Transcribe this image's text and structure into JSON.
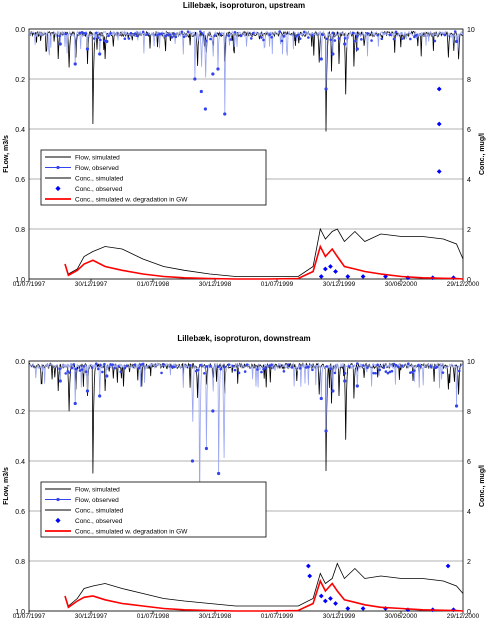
{
  "chart_data": [
    {
      "type": "line",
      "title": "Lillebæk, isoproturon, upstream",
      "ylabel_left": "FLow, m3/s",
      "ylabel_right": "Conc., mug/l",
      "xlabel": "",
      "x_ticks": [
        "01/07/1997",
        "30/12/1997",
        "01/07/1998",
        "30/12/1998",
        "01/07/1999",
        "30/12/1999",
        "30/06/2000",
        "29/12/2000"
      ],
      "x_range": [
        "1997-07-01",
        "2000-12-29"
      ],
      "ylim_left": [
        1.0,
        0.0
      ],
      "yticks_left": [
        "0.0",
        "0.2",
        "0.4",
        "0.6",
        "0.8",
        "1.0"
      ],
      "ylim_right": [
        0,
        10
      ],
      "yticks_right": [
        "0",
        "2",
        "4",
        "6",
        "8",
        "10"
      ],
      "grid": "horizontal",
      "legend": [
        {
          "label": "Flow, simulated",
          "style": "line",
          "color": "#000000"
        },
        {
          "label": "Flow, observed",
          "style": "line-marker",
          "color": "#3344ee"
        },
        {
          "label": "Conc., simulated",
          "style": "line",
          "color": "#000000"
        },
        {
          "label": "Conc., observed",
          "style": "marker",
          "color": "#0000ff"
        },
        {
          "label": "Conc., simulated w. degradation in GW",
          "style": "line",
          "color": "#ff0000"
        }
      ],
      "series": [
        {
          "name": "Flow, simulated",
          "axis": "left",
          "color": "#000000",
          "x": [
            "1997-07-01",
            "1997-09-25",
            "1997-10-26",
            "1997-11-15",
            "1997-12-20",
            "1998-01-05",
            "1998-02-10",
            "1998-03-06",
            "1998-11-08",
            "1998-12-04",
            "1998-12-24",
            "1999-01-28",
            "1999-02-18",
            "1999-11-01",
            "1999-11-22",
            "1999-12-08",
            "1999-12-30",
            "2000-01-18",
            "2000-02-12",
            "2000-03-12",
            "2000-11-15",
            "2000-12-01",
            "2000-12-15",
            "2000-12-29"
          ],
          "y": [
            0.0,
            0.12,
            0.23,
            0.17,
            0.14,
            0.38,
            0.12,
            0.07,
            0.22,
            0.14,
            0.1,
            0.13,
            0.07,
            0.2,
            0.41,
            0.17,
            0.14,
            0.39,
            0.15,
            0.1,
            0.17,
            0.07,
            0.18,
            0.06
          ]
        },
        {
          "name": "Flow, observed",
          "axis": "left",
          "color": "#3344ee",
          "x": [
            "1997-10-01",
            "1997-11-14",
            "1997-12-20",
            "1998-01-25",
            "1998-02-15",
            "1998-11-01",
            "1998-11-20",
            "1998-12-02",
            "1998-12-24",
            "1999-01-08",
            "1999-01-28",
            "1999-11-08",
            "1999-11-22",
            "1999-12-12",
            "2000-01-16",
            "2000-02-22",
            "2000-12-10"
          ],
          "y": [
            0.06,
            0.14,
            0.08,
            0.1,
            0.05,
            0.2,
            0.25,
            0.32,
            0.18,
            0.16,
            0.34,
            0.12,
            0.24,
            0.1,
            0.06,
            0.08,
            0.05
          ]
        },
        {
          "name": "Conc., simulated",
          "axis": "right",
          "color": "#000000",
          "x": [
            "1997-10-15",
            "1997-10-25",
            "1997-11-20",
            "1997-12-10",
            "1998-01-05",
            "1998-02-10",
            "1998-04-01",
            "1998-06-01",
            "1998-08-01",
            "1998-10-01",
            "1998-12-15",
            "1999-03-01",
            "1999-06-01",
            "1999-09-01",
            "1999-10-15",
            "1999-11-05",
            "1999-11-20",
            "1999-12-10",
            "1999-12-25",
            "2000-01-15",
            "2000-02-15",
            "2000-03-15",
            "2000-05-01",
            "2000-07-01",
            "2000-09-01",
            "2000-11-01",
            "2000-12-10",
            "2000-12-29"
          ],
          "y": [
            0.6,
            0.2,
            0.4,
            0.9,
            1.1,
            1.3,
            1.2,
            0.8,
            0.5,
            0.35,
            0.2,
            0.1,
            0.1,
            0.1,
            0.5,
            2.0,
            1.6,
            1.9,
            2.0,
            1.5,
            1.9,
            1.5,
            1.8,
            1.7,
            1.7,
            1.6,
            1.4,
            0.8
          ]
        },
        {
          "name": "Conc., observed",
          "axis": "right",
          "color": "#0000ff",
          "x": [
            "1999-11-08",
            "1999-11-20",
            "1999-12-05",
            "1999-12-20",
            "2000-01-25",
            "2000-03-10",
            "2000-05-15",
            "2000-07-20",
            "2000-10-01",
            "2000-10-20",
            "2000-10-20",
            "2000-10-20",
            "2000-12-01"
          ],
          "y": [
            0.1,
            0.4,
            0.5,
            0.3,
            0.1,
            0.1,
            0.1,
            0.05,
            0.05,
            7.6,
            6.2,
            4.3,
            0.05
          ]
        },
        {
          "name": "Conc., simulated w. degradation in GW",
          "axis": "right",
          "color": "#ff0000",
          "x": [
            "1997-10-15",
            "1997-10-25",
            "1997-11-20",
            "1997-12-10",
            "1998-01-05",
            "1998-02-10",
            "1998-04-01",
            "1998-06-01",
            "1998-08-01",
            "1998-10-01",
            "1998-12-15",
            "1999-03-01",
            "1999-06-01",
            "1999-09-01",
            "1999-10-15",
            "1999-11-05",
            "1999-11-20",
            "1999-12-10",
            "1999-12-25",
            "2000-01-15",
            "2000-02-15",
            "2000-03-15",
            "2000-05-01",
            "2000-07-01",
            "2000-09-01",
            "2000-11-01",
            "2000-12-10",
            "2000-12-29"
          ],
          "y": [
            0.6,
            0.15,
            0.35,
            0.6,
            0.75,
            0.5,
            0.35,
            0.2,
            0.1,
            0.05,
            0.02,
            0.0,
            0.0,
            0.02,
            0.3,
            1.3,
            0.9,
            1.2,
            0.9,
            0.5,
            0.4,
            0.3,
            0.2,
            0.1,
            0.05,
            0.03,
            0.02,
            0.0
          ]
        }
      ]
    },
    {
      "type": "line",
      "title": "Lillebæk, isoproturon, downstream",
      "ylabel_left": "FLow, m3/s",
      "ylabel_right": "Conc., mug/l",
      "xlabel": "",
      "x_ticks": [
        "01/07/1997",
        "30/12/1997",
        "01/07/1998",
        "30/12/1998",
        "01/07/1999",
        "30/12/1999",
        "30/06/2000",
        "29/12/2000"
      ],
      "x_range": [
        "1997-07-01",
        "2000-12-29"
      ],
      "ylim_left": [
        1.0,
        0.0
      ],
      "yticks_left": [
        "0.0",
        "0.2",
        "0.4",
        "0.6",
        "0.8",
        "1.0"
      ],
      "ylim_right": [
        0,
        10
      ],
      "yticks_right": [
        "0",
        "2",
        "4",
        "6",
        "8",
        "10"
      ],
      "grid": "horizontal",
      "legend": [
        {
          "label": "Flow, simulated",
          "style": "line",
          "color": "#000000"
        },
        {
          "label": "Flow, observed",
          "style": "line-marker",
          "color": "#3344ee"
        },
        {
          "label": "Conc., simulated",
          "style": "line",
          "color": "#000000"
        },
        {
          "label": "Conc., observed",
          "style": "marker",
          "color": "#0000ff"
        },
        {
          "label": "Conc., simulated w. degradation in GW",
          "style": "line",
          "color": "#ff0000"
        }
      ],
      "series": [
        {
          "name": "Flow, simulated",
          "axis": "left",
          "color": "#000000",
          "x": [
            "1997-07-01",
            "1997-09-25",
            "1997-10-26",
            "1997-11-15",
            "1997-12-20",
            "1998-01-05",
            "1998-02-10",
            "1998-03-06",
            "1998-11-08",
            "1998-12-04",
            "1998-12-24",
            "1999-01-28",
            "1999-02-18",
            "1999-11-01",
            "1999-11-22",
            "1999-12-08",
            "1999-12-30",
            "2000-01-18",
            "2000-02-12",
            "2000-03-12",
            "2000-11-15",
            "2000-12-01",
            "2000-12-15",
            "2000-12-29"
          ],
          "y": [
            0.0,
            0.12,
            0.3,
            0.17,
            0.14,
            0.45,
            0.12,
            0.07,
            0.22,
            0.14,
            0.1,
            0.13,
            0.07,
            0.2,
            0.44,
            0.17,
            0.14,
            0.47,
            0.15,
            0.1,
            0.17,
            0.07,
            0.2,
            0.06
          ]
        },
        {
          "name": "Flow, observed",
          "axis": "left",
          "color": "#3344ee",
          "x": [
            "1997-10-01",
            "1997-11-14",
            "1997-12-20",
            "1998-01-25",
            "1998-02-15",
            "1998-10-25",
            "1998-11-15",
            "1998-12-05",
            "1998-12-24",
            "1999-01-10",
            "1999-01-25",
            "1999-11-08",
            "1999-11-22",
            "1999-12-12",
            "2000-01-16",
            "2000-02-22",
            "2000-12-10"
          ],
          "y": [
            0.08,
            0.17,
            0.12,
            0.14,
            0.06,
            0.4,
            0.6,
            0.35,
            0.2,
            0.45,
            0.64,
            0.15,
            0.28,
            0.12,
            0.08,
            0.1,
            0.18
          ]
        },
        {
          "name": "Conc., simulated",
          "axis": "right",
          "color": "#000000",
          "x": [
            "1997-10-15",
            "1997-10-25",
            "1997-11-20",
            "1997-12-10",
            "1998-01-05",
            "1998-02-10",
            "1998-04-01",
            "1998-06-01",
            "1998-08-01",
            "1998-10-01",
            "1998-12-15",
            "1999-03-01",
            "1999-06-01",
            "1999-09-01",
            "1999-10-15",
            "1999-11-05",
            "1999-11-20",
            "1999-12-10",
            "1999-12-25",
            "2000-01-15",
            "2000-02-15",
            "2000-03-15",
            "2000-05-01",
            "2000-07-01",
            "2000-09-01",
            "2000-11-01",
            "2000-12-10",
            "2000-12-29"
          ],
          "y": [
            0.6,
            0.2,
            0.5,
            0.9,
            1.0,
            1.1,
            0.9,
            0.7,
            0.5,
            0.4,
            0.3,
            0.2,
            0.2,
            0.2,
            0.5,
            1.5,
            1.1,
            1.3,
            1.9,
            1.3,
            1.7,
            1.3,
            1.4,
            1.3,
            1.3,
            1.2,
            1.0,
            0.7
          ]
        },
        {
          "name": "Conc., observed",
          "axis": "right",
          "color": "#0000ff",
          "x": [
            "1999-10-01",
            "1999-10-05",
            "1999-11-08",
            "1999-11-20",
            "1999-12-05",
            "1999-12-20",
            "2000-01-25",
            "2000-03-10",
            "2000-05-15",
            "2000-07-20",
            "2000-10-01",
            "2000-11-15",
            "2000-12-01"
          ],
          "y": [
            1.8,
            1.4,
            0.6,
            0.4,
            0.5,
            0.3,
            0.1,
            0.1,
            0.1,
            0.05,
            0.05,
            1.8,
            0.05
          ]
        },
        {
          "name": "Conc., simulated w. degradation in GW",
          "axis": "right",
          "color": "#ff0000",
          "x": [
            "1997-10-15",
            "1997-10-25",
            "1997-11-20",
            "1997-12-10",
            "1998-01-05",
            "1998-02-10",
            "1998-04-01",
            "1998-06-01",
            "1998-08-01",
            "1998-10-01",
            "1998-12-15",
            "1999-03-01",
            "1999-06-01",
            "1999-09-01",
            "1999-10-15",
            "1999-11-05",
            "1999-11-20",
            "1999-12-10",
            "1999-12-25",
            "2000-01-15",
            "2000-02-15",
            "2000-03-15",
            "2000-05-01",
            "2000-07-01",
            "2000-09-01",
            "2000-11-01",
            "2000-12-10",
            "2000-12-29"
          ],
          "y": [
            0.6,
            0.15,
            0.4,
            0.55,
            0.6,
            0.45,
            0.3,
            0.2,
            0.1,
            0.05,
            0.02,
            0.0,
            0.0,
            0.02,
            0.3,
            1.2,
            0.8,
            1.1,
            0.8,
            0.45,
            0.35,
            0.25,
            0.15,
            0.1,
            0.05,
            0.03,
            0.02,
            0.0
          ]
        }
      ]
    }
  ]
}
